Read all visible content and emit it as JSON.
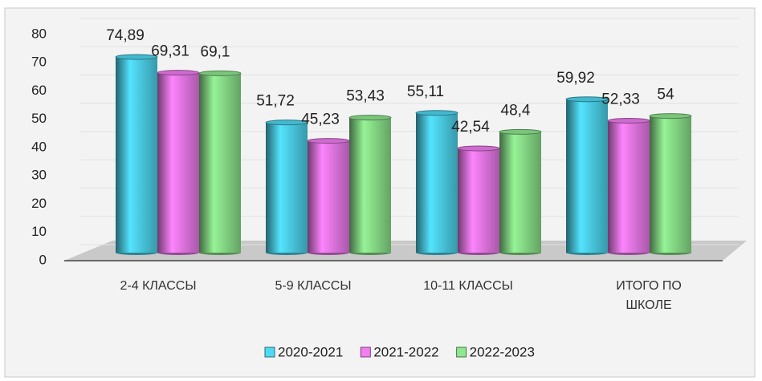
{
  "chart_data": {
    "type": "bar3d",
    "categories": [
      "2-4 КЛАССЫ",
      "5-9 КЛАССЫ",
      "10-11 КЛАССЫ",
      "ИТОГО ПО ШКОЛЕ"
    ],
    "series": [
      {
        "name": "2020-2021",
        "color": "#4fd9f2",
        "values": [
          74.89,
          51.72,
          55.11,
          59.92
        ],
        "value_labels": [
          "74,89",
          "51,72",
          "55,11",
          "59,92"
        ]
      },
      {
        "name": "2021-2022",
        "color": "#f27ef2",
        "values": [
          69.31,
          45.23,
          42.54,
          52.33
        ],
        "value_labels": [
          "69,31",
          "45,23",
          "42,54",
          "52,33"
        ]
      },
      {
        "name": "2022-2023",
        "color": "#8fe88f",
        "values": [
          69.1,
          53.43,
          48.4,
          54
        ],
        "value_labels": [
          "69,1",
          "53,43",
          "48,4",
          "54"
        ]
      }
    ],
    "ylim": [
      0,
      80
    ],
    "yticks": [
      0,
      10,
      20,
      30,
      40,
      50,
      60,
      70,
      80
    ],
    "grid": true,
    "legend": "bottom"
  }
}
